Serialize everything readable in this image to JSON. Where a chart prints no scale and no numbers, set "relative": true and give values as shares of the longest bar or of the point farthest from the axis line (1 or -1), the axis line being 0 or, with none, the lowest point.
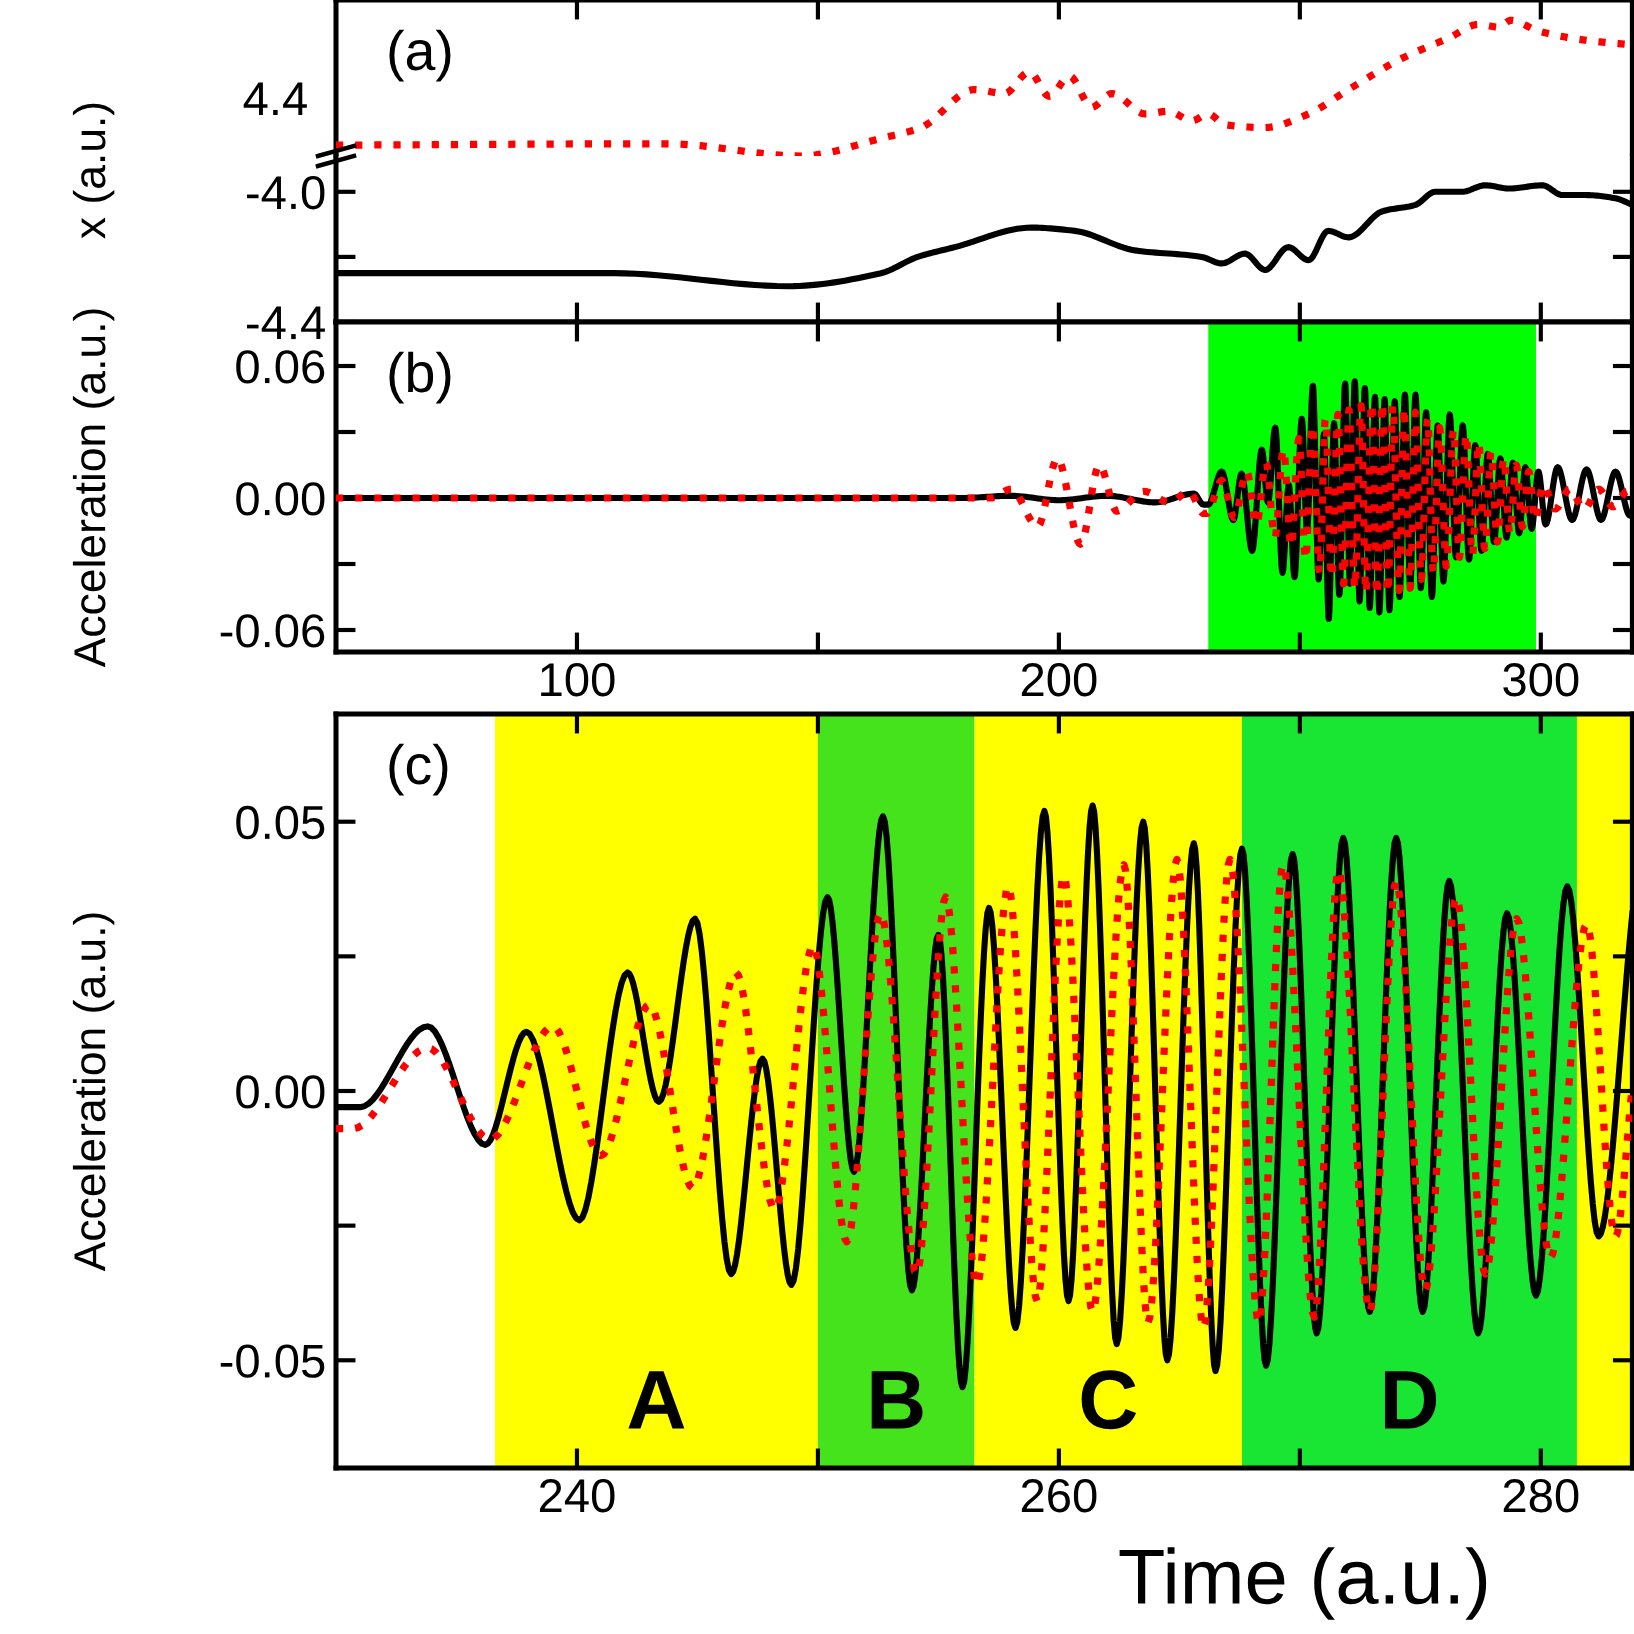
{
  "chart_data": [
    {
      "type": "line",
      "ylabel": "x (a.u.)",
      "annotations": [
        "(a)",
        "4.4"
      ],
      "tick_labels": "y",
      "relative": true,
      "xlim": [
        50,
        319
      ],
      "xticks": [
        100,
        {
          "value": 150,
          "label": null
        },
        200,
        {
          "value": 250,
          "label": null
        },
        300
      ],
      "series": [
        {
          "color": "#ff0000",
          "line_style": "dotted",
          "x": [
            50,
            118.6,
            146.5,
            163.1,
            171.4,
            182.5,
            188.7,
            193.9,
            198,
            202.2,
            206.8,
            211,
            217.9,
            222.7,
            227.6,
            231,
            234.5,
            242.8,
            251.8,
            260.1,
            271.2,
            280.9,
            287.1,
            291.3,
            293.8,
            299.6,
            310,
            319
          ],
          "values": [
            0.08,
            0.09,
            0,
            0.13,
            0.21,
            0.49,
            0.46,
            0.62,
            0.44,
            0.59,
            0.36,
            0.46,
            0.31,
            0.33,
            0.26,
            0.31,
            0.23,
            0.21,
            0.31,
            0.49,
            0.72,
            0.87,
            0.97,
            0.95,
            1,
            0.92,
            0.85,
            0.82
          ]
        }
      ]
    },
    {
      "type": "line",
      "tick_labels": "y",
      "xlim": [
        50,
        319
      ],
      "xticks": [
        100,
        {
          "value": 150,
          "label": null
        },
        200,
        {
          "value": 250,
          "label": null
        },
        300
      ],
      "ylim": [
        -4.4,
        -3.89
      ],
      "yticks": [
        {
          "value": -4.0,
          "label": "-4.0"
        },
        {
          "value": -4.2,
          "label": null
        },
        {
          "value": -4.4,
          "label": "-4.4"
        }
      ],
      "series": [
        {
          "color": "#000000",
          "line_style": "solid",
          "x": [
            50,
            107.7,
            143.7,
            163.1,
            170.7,
            178.4,
            194.3,
            203.3,
            215.8,
            229.6,
            233.8,
            238.6,
            242.8,
            247.6,
            251.8,
            255.9,
            260.1,
            267.1,
            274,
            278.1,
            283.6,
            288.5,
            293.4,
            300.3,
            304.5,
            309.3,
            315.5,
            319
          ],
          "values": [
            -4.25,
            -4.25,
            -4.29,
            -4.25,
            -4.2,
            -4.17,
            -4.11,
            -4.12,
            -4.18,
            -4.2,
            -4.22,
            -4.19,
            -4.24,
            -4.17,
            -4.21,
            -4.12,
            -4.14,
            -4.06,
            -4.04,
            -4.0,
            -4.0,
            -3.98,
            -3.99,
            -3.98,
            -4.01,
            -4.01,
            -4.02,
            -4.04
          ]
        }
      ]
    },
    {
      "type": "line",
      "ylabel": "Acceleration (a.u.)",
      "annotations": [
        "(b)"
      ],
      "xlim": [
        50,
        319
      ],
      "xticks": [
        100,
        {
          "value": 150,
          "label": null
        },
        200,
        {
          "value": 250,
          "label": null
        },
        300
      ],
      "ylim": [
        -0.07,
        0.08
      ],
      "yticks": [
        {
          "value": -0.06,
          "label": "-0.06"
        },
        {
          "value": -0.03,
          "label": null
        },
        {
          "value": 0,
          "label": "0.00"
        },
        {
          "value": 0.03,
          "label": null
        },
        {
          "value": 0.06,
          "label": "0.06"
        }
      ],
      "bands": [
        {
          "axis": "x",
          "from": 231,
          "to": 299,
          "color": "#00ff00"
        }
      ],
      "series": [
        {
          "color": "#000000",
          "line_style": "solid",
          "x": [
            50,
            100,
            150,
            180,
            190,
            200,
            210,
            220,
            228,
            230,
            231,
            233.8,
            236.2,
            237.9,
            240.1,
            242.1,
            243.4,
            244.9,
            246.4,
            247.7,
            248.9,
            250.4,
            251.5,
            252.7,
            253.9,
            255,
            256,
            257.1,
            258.2,
            259.4,
            260.4,
            261.4,
            262.4,
            263.5,
            264.5,
            265.6,
            266.5,
            267.6,
            268.6,
            269.7,
            270.7,
            271.8,
            272.9,
            274,
            275.1,
            276.2,
            277.4,
            278.6,
            279.8,
            281.1,
            282.4,
            283.8,
            285.1,
            286.4,
            287.7,
            289,
            290.3,
            291.6,
            292.9,
            294.2,
            295.5,
            296.8,
            298.1,
            299.5,
            301,
            303.5,
            306.5,
            309.5,
            312.5,
            315.5,
            318.5,
            319
          ],
          "values": [
            0,
            0,
            0,
            0,
            0.001,
            -0.001,
            0.001,
            -0.002,
            0.002,
            -0.003,
            -0.003,
            0.012,
            -0.01,
            0.011,
            -0.024,
            0.022,
            -0.002,
            0.032,
            -0.034,
            0.006,
            -0.036,
            0.036,
            -0.015,
            0.051,
            -0.037,
            0.029,
            -0.055,
            0.034,
            -0.044,
            0.052,
            -0.039,
            0.053,
            -0.047,
            0.05,
            -0.05,
            0.046,
            -0.052,
            0.045,
            -0.051,
            0.044,
            -0.045,
            0.047,
            -0.041,
            0.047,
            -0.041,
            0.039,
            -0.045,
            0.033,
            -0.038,
            0.038,
            -0.027,
            0.033,
            -0.028,
            0.024,
            -0.024,
            0.02,
            -0.02,
            0.018,
            -0.018,
            0.016,
            -0.016,
            0.014,
            -0.014,
            0.012,
            -0.012,
            0.014,
            -0.01,
            0.013,
            -0.01,
            0.012,
            -0.008,
            -0.006
          ]
        },
        {
          "color": "#ff0000",
          "line_style": "dotted",
          "x": [
            50,
            100,
            150,
            185.8,
            190.1,
            195.6,
            199.7,
            204.5,
            208.4,
            212,
            217.6,
            223,
            227,
            230,
            230.7,
            233.8,
            236.4,
            239,
            241,
            243,
            244.8,
            246.6,
            248.2,
            249.8,
            251.2,
            252.6,
            254.1,
            255.3,
            256.6,
            257.9,
            259.1,
            260.2,
            261.4,
            262.7,
            263.7,
            264.9,
            266,
            267.1,
            268.3,
            269.3,
            270.6,
            271.6,
            272.9,
            274,
            275.2,
            276.5,
            277.7,
            279,
            280.4,
            281.9,
            283.1,
            283.8,
            284.5,
            285.8,
            287.1,
            288.4,
            289.7,
            291,
            292.3,
            293.6,
            294.9,
            296.2,
            297.5,
            298.8,
            300.5,
            303,
            306,
            309,
            312,
            315,
            318,
            319
          ],
          "values": [
            0,
            0,
            0,
            0,
            0.004,
            -0.013,
            0.018,
            -0.021,
            0.015,
            -0.006,
            0.003,
            -0.002,
            0.003,
            -0.007,
            -0.007,
            0.008,
            -0.009,
            0.012,
            -0.012,
            0.016,
            -0.018,
            0.022,
            -0.022,
            0.027,
            -0.028,
            0.033,
            -0.034,
            0.036,
            -0.036,
            0.038,
            -0.039,
            0.04,
            -0.041,
            0.042,
            -0.043,
            0.043,
            -0.044,
            0.043,
            -0.043,
            0.042,
            -0.042,
            0.041,
            -0.041,
            0.039,
            -0.037,
            0.036,
            -0.034,
            0.032,
            -0.031,
            0.031,
            -0.027,
            0.001,
            0.029,
            -0.026,
            0.025,
            -0.023,
            0.021,
            -0.02,
            0.018,
            -0.016,
            0.015,
            -0.013,
            0.012,
            -0.01,
            0.006,
            -0.005,
            0.004,
            -0.005,
            0.004,
            -0.004,
            0.003,
            0.001
          ]
        }
      ]
    },
    {
      "type": "line",
      "ylabel": "Acceleration (a.u.)",
      "xlabel": "Time (a.u.)",
      "annotations": [
        "(c)"
      ],
      "xlim": [
        230,
        283.8
      ],
      "xticks": [
        240,
        {
          "value": 250,
          "label": null
        },
        260,
        {
          "value": 270,
          "label": null
        },
        280
      ],
      "ylim": [
        -0.07,
        0.07
      ],
      "yticks": [
        -0.05,
        {
          "value": -0.025,
          "label": null
        },
        {
          "value": 0,
          "label": "0.00"
        },
        {
          "value": 0.025,
          "label": null
        },
        0.05
      ],
      "bands": [
        {
          "axis": "x",
          "from": 236.6,
          "to": 250,
          "color": "#ffff00",
          "label": "A"
        },
        {
          "axis": "x",
          "from": 250,
          "to": 256.5,
          "color": "#44e31c",
          "label": "B"
        },
        {
          "axis": "x",
          "from": 256.5,
          "to": 267.6,
          "color": "#ffff00",
          "label": "C"
        },
        {
          "axis": "x",
          "from": 267.6,
          "to": 281.5,
          "color": "#18e632",
          "label": "D"
        },
        {
          "axis": "x",
          "from": 281.5,
          "to": 283.8,
          "color": "#ffff00"
        }
      ],
      "series": [
        {
          "color": "#000000",
          "line_style": "solid",
          "x": [
            230,
            231,
            233.8,
            236.2,
            237.9,
            240.1,
            242.1,
            243.4,
            244.9,
            246.4,
            247.7,
            248.9,
            250.4,
            251.5,
            252.7,
            253.9,
            255,
            256,
            257.1,
            258.2,
            259.4,
            260.4,
            261.4,
            262.4,
            263.5,
            264.5,
            265.6,
            266.5,
            267.6,
            268.6,
            269.7,
            270.7,
            271.8,
            272.9,
            274,
            275.1,
            276.2,
            277.4,
            278.6,
            279.8,
            281.1,
            282.4,
            283.8
          ],
          "values": [
            -0.003,
            -0.003,
            0.012,
            -0.01,
            0.011,
            -0.024,
            0.022,
            -0.002,
            0.032,
            -0.034,
            0.006,
            -0.036,
            0.036,
            -0.015,
            0.051,
            -0.037,
            0.029,
            -0.055,
            0.034,
            -0.044,
            0.052,
            -0.039,
            0.053,
            -0.047,
            0.05,
            -0.05,
            0.046,
            -0.052,
            0.045,
            -0.051,
            0.044,
            -0.045,
            0.047,
            -0.041,
            0.047,
            -0.041,
            0.039,
            -0.045,
            0.033,
            -0.038,
            0.038,
            -0.027,
            0.033
          ]
        },
        {
          "color": "#ff0000",
          "line_style": "dotted",
          "x": [
            230,
            230.7,
            233.8,
            236.4,
            239,
            241,
            243,
            244.8,
            246.6,
            248.2,
            249.8,
            251.2,
            252.6,
            254.1,
            255.3,
            256.6,
            257.9,
            259.1,
            260.2,
            261.4,
            262.7,
            263.7,
            264.9,
            266,
            267.1,
            268.3,
            269.3,
            270.6,
            271.6,
            272.9,
            274,
            275.2,
            276.5,
            277.7,
            279,
            280.4,
            281.9,
            283.1,
            283.8
          ],
          "values": [
            -0.007,
            -0.007,
            0.008,
            -0.009,
            0.012,
            -0.012,
            0.016,
            -0.018,
            0.022,
            -0.022,
            0.027,
            -0.028,
            0.033,
            -0.034,
            0.036,
            -0.036,
            0.038,
            -0.039,
            0.04,
            -0.041,
            0.042,
            -0.043,
            0.043,
            -0.044,
            0.043,
            -0.043,
            0.042,
            -0.042,
            0.041,
            -0.041,
            0.039,
            -0.037,
            0.036,
            -0.034,
            0.032,
            -0.031,
            0.031,
            -0.027,
            0.001
          ]
        }
      ]
    }
  ]
}
